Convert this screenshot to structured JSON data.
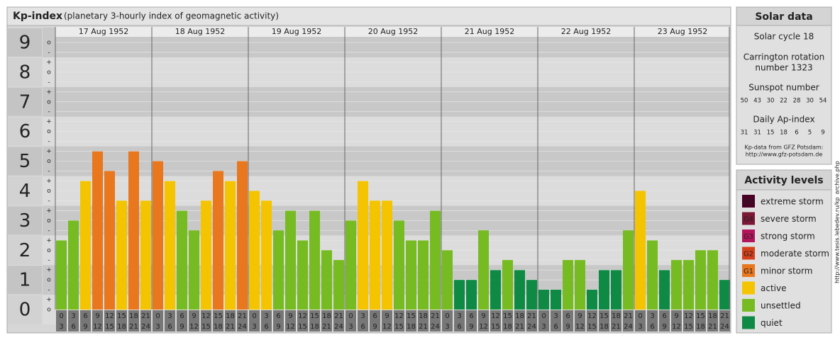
{
  "chart_data": {
    "type": "bar",
    "title": "Kp-index",
    "subtitle": "(planetary 3-hourly index of geomagnetic activity)",
    "categories": [
      "17 Aug 1952",
      "18 Aug 1952",
      "19 Aug 1952",
      "20 Aug 1952",
      "21 Aug 1952",
      "22 Aug 1952",
      "23 Aug 1952"
    ],
    "hours": [
      {
        "from": "0",
        "to": "3"
      },
      {
        "from": "3",
        "to": "6"
      },
      {
        "from": "6",
        "to": "9"
      },
      {
        "from": "9",
        "to": "12"
      },
      {
        "from": "12",
        "to": "15"
      },
      {
        "from": "15",
        "to": "18"
      },
      {
        "from": "18",
        "to": "21"
      },
      {
        "from": "21",
        "to": "24"
      }
    ],
    "values": [
      [
        2.33,
        3,
        4.33,
        5.33,
        4.67,
        3.67,
        5.33,
        3.67
      ],
      [
        5,
        4.33,
        3.33,
        2.67,
        3.67,
        4.67,
        4.33,
        5
      ],
      [
        4,
        3.67,
        2.67,
        3.33,
        2.33,
        3.33,
        2,
        1.67
      ],
      [
        3,
        4.33,
        3.67,
        3.67,
        3,
        2.33,
        2.33,
        3.33
      ],
      [
        2,
        1,
        1,
        2.67,
        1.33,
        1.67,
        1.33,
        1
      ],
      [
        0.67,
        0.67,
        1.67,
        1.67,
        0.67,
        1.33,
        1.33,
        2.67
      ],
      [
        4,
        2.33,
        1.33,
        1.67,
        1.67,
        2,
        2,
        1
      ]
    ],
    "colors": [
      [
        "#77bb22",
        "#77bb22",
        "#f5c400",
        "#e8771e",
        "#e8771e",
        "#f5c400",
        "#e8771e",
        "#f5c400"
      ],
      [
        "#e8771e",
        "#f5c400",
        "#77bb22",
        "#77bb22",
        "#f5c400",
        "#e8771e",
        "#f5c400",
        "#e8771e"
      ],
      [
        "#f5c400",
        "#f5c400",
        "#77bb22",
        "#77bb22",
        "#77bb22",
        "#77bb22",
        "#77bb22",
        "#77bb22"
      ],
      [
        "#77bb22",
        "#f5c400",
        "#f5c400",
        "#f5c400",
        "#77bb22",
        "#77bb22",
        "#77bb22",
        "#77bb22"
      ],
      [
        "#77bb22",
        "#0f8a44",
        "#0f8a44",
        "#77bb22",
        "#0f8a44",
        "#77bb22",
        "#0f8a44",
        "#0f8a44"
      ],
      [
        "#0f8a44",
        "#0f8a44",
        "#77bb22",
        "#77bb22",
        "#0f8a44",
        "#0f8a44",
        "#0f8a44",
        "#77bb22"
      ],
      [
        "#f5c400",
        "#77bb22",
        "#0f8a44",
        "#77bb22",
        "#77bb22",
        "#77bb22",
        "#77bb22",
        "#0f8a44"
      ]
    ],
    "ylim": [
      -0.5,
      9.5
    ],
    "yticks": [
      0,
      1,
      2,
      3,
      4,
      5,
      6,
      7,
      8,
      9
    ],
    "yminorticks": [
      {
        "value": 9,
        "label": "o"
      },
      {
        "value": 8.667,
        "label": "-"
      },
      {
        "value": 8.333,
        "label": "+"
      },
      {
        "value": 8,
        "label": "o"
      },
      {
        "value": 7.667,
        "label": "-"
      },
      {
        "value": 7.333,
        "label": "+"
      },
      {
        "value": 7,
        "label": "o"
      },
      {
        "value": 6.667,
        "label": "-"
      },
      {
        "value": 6.333,
        "label": "+"
      },
      {
        "value": 6,
        "label": "o"
      },
      {
        "value": 5.667,
        "label": "-"
      },
      {
        "value": 5.333,
        "label": "+"
      },
      {
        "value": 5,
        "label": "o"
      },
      {
        "value": 4.667,
        "label": "-"
      },
      {
        "value": 4.333,
        "label": "+"
      },
      {
        "value": 4,
        "label": "o"
      },
      {
        "value": 3.667,
        "label": "-"
      },
      {
        "value": 3.333,
        "label": "+"
      },
      {
        "value": 3,
        "label": "o"
      },
      {
        "value": 2.667,
        "label": "-"
      },
      {
        "value": 2.333,
        "label": "+"
      },
      {
        "value": 2,
        "label": "o"
      },
      {
        "value": 1.667,
        "label": "-"
      },
      {
        "value": 1.333,
        "label": "+"
      },
      {
        "value": 1,
        "label": "o"
      },
      {
        "value": 0.667,
        "label": "-"
      },
      {
        "value": 0.333,
        "label": "+"
      },
      {
        "value": 0,
        "label": "o"
      }
    ]
  },
  "solar": {
    "title": "Solar data",
    "cycle": "Solar cycle 18",
    "rotation_1": "Carrington rotation",
    "rotation_2": "number 1323",
    "sunspot_title": "Sunspot number",
    "sunspots": [
      50,
      43,
      30,
      22,
      28,
      30,
      54
    ],
    "ap_title": "Daily Ap-index",
    "ap": [
      31,
      31,
      15,
      18,
      6,
      5,
      9
    ],
    "source_1": "Kp-data from GFZ Potsdam:",
    "source_2": "http://www.gfz-potsdam.de"
  },
  "legend": {
    "title": "Activity levels",
    "items": [
      {
        "badge": "G5",
        "label": "extreme storm",
        "color": "#4a0025"
      },
      {
        "badge": "G4",
        "label": "severe storm",
        "color": "#7b1836"
      },
      {
        "badge": "G3",
        "label": "strong storm",
        "color": "#b3155c"
      },
      {
        "badge": "G2",
        "label": "moderate storm",
        "color": "#d5401b"
      },
      {
        "badge": "G1",
        "label": "minor storm",
        "color": "#e8771e"
      },
      {
        "label": "active",
        "color": "#f5c400"
      },
      {
        "label": "unsettled",
        "color": "#77bb22"
      },
      {
        "label": "quiet",
        "color": "#0f8a44"
      }
    ]
  },
  "watermark": "http://www.tesis.lebedev.ru/kp_archive.php"
}
